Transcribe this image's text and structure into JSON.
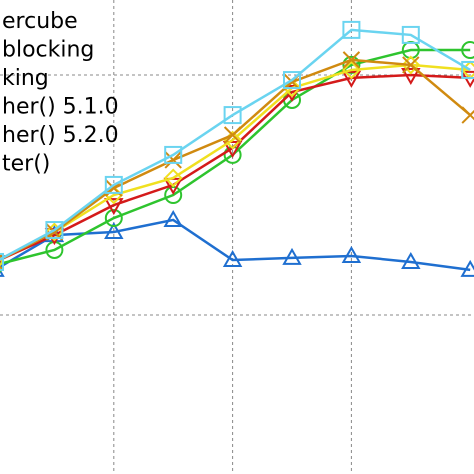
{
  "chart_data": {
    "type": "line",
    "x": [
      0,
      1,
      2,
      3,
      4,
      5,
      6,
      7,
      8
    ],
    "xlim": [
      0.084,
      8.064
    ],
    "xticks": [
      2,
      4,
      6
    ],
    "ylim": [
      0.3375,
      2.3125
    ],
    "yticks": [
      1,
      2
    ],
    "grid": true,
    "series": [
      {
        "name": "ercube",
        "color": "#1f6fd0",
        "marker": "triangle",
        "values": [
          1.188,
          1.333,
          1.346,
          1.396,
          1.229,
          1.238,
          1.246,
          1.221,
          1.188
        ]
      },
      {
        "name": "blocking",
        "color": "#2ec42e",
        "marker": "circle",
        "values": [
          1.208,
          1.271,
          1.404,
          1.5,
          1.667,
          1.896,
          2.042,
          2.104,
          2.104
        ]
      },
      {
        "name": "king",
        "color": "#d41a1a",
        "marker": "triangle-down",
        "values": [
          1.221,
          1.333,
          1.458,
          1.542,
          1.696,
          1.929,
          1.988,
          2.0,
          1.988
        ]
      },
      {
        "name": "her() 5.1.0",
        "color": "#f0e020",
        "marker": "diamond",
        "values": [
          1.221,
          1.346,
          1.5,
          1.571,
          1.729,
          1.946,
          2.021,
          2.042,
          2.021
        ]
      },
      {
        "name": "her() 5.2.0",
        "color": "#d08a10",
        "marker": "x",
        "values": [
          1.221,
          1.346,
          1.529,
          1.646,
          1.75,
          1.971,
          2.063,
          2.042,
          1.833
        ]
      },
      {
        "name": "ter()",
        "color": "#6ad4f0",
        "marker": "square",
        "values": [
          1.221,
          1.354,
          1.542,
          1.667,
          1.833,
          1.979,
          2.188,
          2.167,
          2.021
        ]
      }
    ]
  }
}
